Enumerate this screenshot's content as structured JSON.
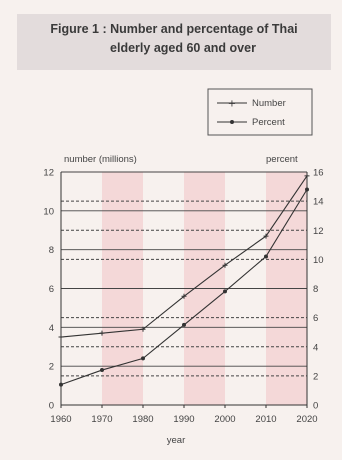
{
  "header": {
    "title_line1": "Figure 1 :  Number and percentage of Thai",
    "title_line2": "elderly aged 60 and over"
  },
  "colors": {
    "band": "#f4d8d8",
    "line": "#333333",
    "grid": "#444444",
    "background": "#f7f1ee"
  },
  "chart_data": {
    "type": "line",
    "x": [
      1960,
      1970,
      1980,
      1990,
      2000,
      2010,
      2020
    ],
    "xticks": [
      "1960",
      "1970",
      "1980",
      "1990",
      "2000",
      "2010",
      "2020"
    ],
    "xlabel": "year",
    "xlim": [
      1960,
      2020
    ],
    "ylabel_left": "number (millions)",
    "ylabel_right": "percent",
    "ylim_left": [
      0,
      12
    ],
    "ylim_right": [
      0,
      16
    ],
    "yticks_left": [
      "0",
      "2",
      "4",
      "6",
      "8",
      "10",
      "12"
    ],
    "yticks_right": [
      "0",
      "2",
      "4",
      "6",
      "8",
      "10",
      "12",
      "14",
      "16"
    ],
    "shaded_decades": [
      [
        1970,
        1980
      ],
      [
        1990,
        2000
      ],
      [
        2010,
        2020
      ]
    ],
    "legend_position": "top-right",
    "series": [
      {
        "name": "Number",
        "axis": "left",
        "marker": "plus",
        "values": [
          3.5,
          3.7,
          3.9,
          5.6,
          7.2,
          8.7,
          11.8
        ]
      },
      {
        "name": "Percent",
        "axis": "right",
        "marker": "dot",
        "values": [
          1.4,
          2.4,
          3.2,
          5.5,
          7.8,
          10.2,
          14.8
        ]
      }
    ]
  }
}
